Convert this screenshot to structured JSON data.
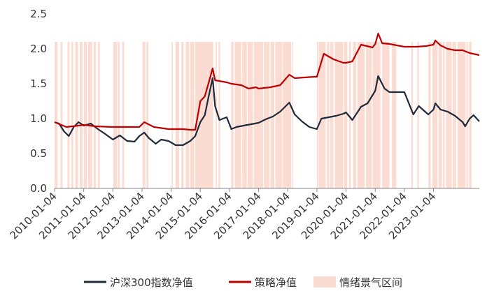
{
  "chart_data": {
    "type": "line",
    "title": "",
    "xlabel": "",
    "ylabel": "",
    "ylim": [
      0.0,
      2.5
    ],
    "yticks": [
      "0.0",
      "0.5",
      "1.0",
      "1.5",
      "2.0",
      "2.5"
    ],
    "xlim": [
      "2010-01-04",
      "2024-07-31"
    ],
    "xticks": [
      "2010-01-04",
      "2011-01-04",
      "2012-01-04",
      "2013-01-04",
      "2014-01-04",
      "2015-01-04",
      "2016-01-04",
      "2017-01-04",
      "2018-01-04",
      "2019-01-04",
      "2020-01-04",
      "2021-01-04",
      "2022-01-04",
      "2023-01-04"
    ],
    "grid": false,
    "legend_position": "bottom",
    "colors": {
      "index": "#1f2a3a",
      "strategy": "#c00000",
      "boom_shading": "#fbdcd3",
      "axis": "#888888"
    },
    "series": [
      {
        "name": "沪深300指数净值",
        "x": [
          "2010-01-04",
          "2010-03-01",
          "2010-05-01",
          "2010-07-01",
          "2010-09-01",
          "2010-11-01",
          "2011-01-04",
          "2011-04-01",
          "2011-07-01",
          "2011-10-01",
          "2012-01-04",
          "2012-04-01",
          "2012-07-01",
          "2012-10-01",
          "2012-12-01",
          "2013-02-01",
          "2013-04-01",
          "2013-06-25",
          "2013-09-01",
          "2013-12-01",
          "2014-03-01",
          "2014-06-01",
          "2014-09-01",
          "2014-11-01",
          "2015-01-04",
          "2015-03-01",
          "2015-04-15",
          "2015-06-08",
          "2015-07-08",
          "2015-09-01",
          "2015-12-01",
          "2016-01-28",
          "2016-04-01",
          "2016-07-01",
          "2016-10-01",
          "2017-01-04",
          "2017-04-01",
          "2017-07-01",
          "2017-10-01",
          "2018-01-24",
          "2018-04-01",
          "2018-07-01",
          "2018-10-01",
          "2019-01-04",
          "2019-03-01",
          "2019-06-01",
          "2019-09-01",
          "2019-12-01",
          "2020-01-04",
          "2020-03-23",
          "2020-07-10",
          "2020-10-01",
          "2021-01-04",
          "2021-02-10",
          "2021-05-01",
          "2021-07-01",
          "2021-10-01",
          "2022-01-04",
          "2022-04-26",
          "2022-07-04",
          "2022-10-31",
          "2023-01-04",
          "2023-01-27",
          "2023-04-01",
          "2023-07-01",
          "2023-10-01",
          "2024-01-04",
          "2024-02-05",
          "2024-04-01",
          "2024-05-20",
          "2024-07-31"
        ],
        "values": [
          0.95,
          0.93,
          0.82,
          0.75,
          0.88,
          0.95,
          0.9,
          0.93,
          0.85,
          0.78,
          0.7,
          0.76,
          0.68,
          0.67,
          0.75,
          0.8,
          0.72,
          0.64,
          0.7,
          0.68,
          0.62,
          0.62,
          0.68,
          0.75,
          0.95,
          1.05,
          1.3,
          1.58,
          1.18,
          0.98,
          1.02,
          0.85,
          0.88,
          0.9,
          0.92,
          0.94,
          0.99,
          1.03,
          1.1,
          1.23,
          1.06,
          0.96,
          0.88,
          0.85,
          1.0,
          1.02,
          1.04,
          1.07,
          1.09,
          0.98,
          1.17,
          1.22,
          1.4,
          1.61,
          1.43,
          1.38,
          1.38,
          1.38,
          1.06,
          1.18,
          1.06,
          1.13,
          1.22,
          1.13,
          1.1,
          1.04,
          0.95,
          0.89,
          1.0,
          1.05,
          0.96
        ]
      },
      {
        "name": "策略净值",
        "x": [
          "2010-01-04",
          "2010-06-01",
          "2010-11-01",
          "2011-01-04",
          "2011-06-01",
          "2012-01-04",
          "2012-06-01",
          "2012-12-01",
          "2013-02-01",
          "2013-06-01",
          "2013-12-01",
          "2014-06-01",
          "2014-09-01",
          "2014-11-01",
          "2015-01-04",
          "2015-03-01",
          "2015-04-15",
          "2015-06-08",
          "2015-07-08",
          "2015-12-01",
          "2016-01-28",
          "2016-06-01",
          "2016-09-01",
          "2016-12-01",
          "2017-01-04",
          "2017-06-01",
          "2017-10-01",
          "2018-01-24",
          "2018-04-01",
          "2018-12-01",
          "2019-01-04",
          "2019-04-01",
          "2019-08-01",
          "2019-12-01",
          "2020-01-04",
          "2020-03-23",
          "2020-07-10",
          "2020-12-01",
          "2021-01-04",
          "2021-02-10",
          "2021-04-01",
          "2021-07-01",
          "2021-10-01",
          "2022-01-04",
          "2022-06-01",
          "2022-10-01",
          "2023-01-04",
          "2023-01-27",
          "2023-04-01",
          "2023-07-01",
          "2023-10-01",
          "2024-01-04",
          "2024-04-01",
          "2024-07-31"
        ],
        "values": [
          0.95,
          0.88,
          0.9,
          0.91,
          0.89,
          0.88,
          0.88,
          0.88,
          0.95,
          0.88,
          0.85,
          0.85,
          0.84,
          0.84,
          1.25,
          1.32,
          1.5,
          1.72,
          1.55,
          1.52,
          1.5,
          1.48,
          1.43,
          1.45,
          1.43,
          1.45,
          1.48,
          1.63,
          1.58,
          1.6,
          1.6,
          1.93,
          1.85,
          1.8,
          1.8,
          1.82,
          2.06,
          2.02,
          2.07,
          2.22,
          2.08,
          2.07,
          2.05,
          2.03,
          2.03,
          2.04,
          2.06,
          2.12,
          2.05,
          2.0,
          1.98,
          1.98,
          1.94,
          1.91
        ]
      }
    ],
    "shading": {
      "name": "情绪景气区间",
      "y_range": [
        0.0,
        2.1
      ],
      "intervals": [
        [
          "2010-01-04",
          "2010-02-10"
        ],
        [
          "2010-03-20",
          "2010-04-15"
        ],
        [
          "2010-06-15",
          "2010-07-10"
        ],
        [
          "2010-08-01",
          "2010-08-25"
        ],
        [
          "2010-09-20",
          "2010-10-25"
        ],
        [
          "2010-11-15",
          "2010-12-20"
        ],
        [
          "2011-01-05",
          "2011-02-15"
        ],
        [
          "2011-03-01",
          "2011-04-20"
        ],
        [
          "2011-05-10",
          "2011-06-05"
        ],
        [
          "2011-07-01",
          "2011-07-25"
        ],
        [
          "2012-01-10",
          "2012-02-25"
        ],
        [
          "2012-03-05",
          "2012-03-30"
        ],
        [
          "2012-05-01",
          "2012-05-25"
        ],
        [
          "2013-01-10",
          "2013-02-15"
        ],
        [
          "2013-03-01",
          "2013-03-25"
        ],
        [
          "2014-01-10",
          "2014-01-25"
        ],
        [
          "2014-03-01",
          "2014-04-15"
        ],
        [
          "2014-05-10",
          "2014-06-10"
        ],
        [
          "2014-07-05",
          "2014-08-20"
        ],
        [
          "2014-09-01",
          "2014-10-20"
        ],
        [
          "2014-11-01",
          "2015-06-15"
        ],
        [
          "2015-07-15",
          "2015-07-30"
        ],
        [
          "2015-08-20",
          "2015-09-10"
        ],
        [
          "2016-01-25",
          "2016-02-25"
        ],
        [
          "2016-03-10",
          "2016-05-30"
        ],
        [
          "2016-06-10",
          "2016-08-10"
        ],
        [
          "2016-08-20",
          "2016-10-25"
        ],
        [
          "2016-11-05",
          "2017-02-28"
        ],
        [
          "2017-03-10",
          "2017-05-20"
        ],
        [
          "2017-06-01",
          "2017-07-20"
        ],
        [
          "2017-08-01",
          "2017-10-25"
        ],
        [
          "2017-11-01",
          "2018-02-15"
        ],
        [
          "2018-02-25",
          "2018-03-10"
        ],
        [
          "2019-01-04",
          "2019-01-25"
        ],
        [
          "2019-02-01",
          "2019-04-25"
        ],
        [
          "2019-05-10",
          "2019-06-10"
        ],
        [
          "2019-06-20",
          "2019-07-30"
        ],
        [
          "2019-08-15",
          "2019-11-30"
        ],
        [
          "2019-12-10",
          "2020-01-20"
        ],
        [
          "2020-02-10",
          "2020-03-05"
        ],
        [
          "2020-04-01",
          "2020-05-10"
        ],
        [
          "2020-05-25",
          "2020-08-25"
        ],
        [
          "2020-09-10",
          "2020-11-20"
        ],
        [
          "2020-12-01",
          "2021-03-10"
        ],
        [
          "2021-04-01",
          "2021-06-30"
        ],
        [
          "2021-08-01",
          "2021-09-25"
        ],
        [
          "2022-04-01",
          "2022-04-20"
        ],
        [
          "2022-06-15",
          "2022-07-05"
        ],
        [
          "2022-11-01",
          "2022-12-01"
        ],
        [
          "2022-12-20",
          "2023-02-25"
        ],
        [
          "2023-03-10",
          "2023-04-20"
        ],
        [
          "2023-05-01",
          "2023-05-25"
        ],
        [
          "2023-06-10",
          "2023-08-20"
        ],
        [
          "2023-09-01",
          "2023-10-15"
        ],
        [
          "2023-11-01",
          "2024-02-10"
        ],
        [
          "2024-02-20",
          "2024-03-10"
        ],
        [
          "2024-03-25",
          "2024-04-25"
        ]
      ]
    }
  }
}
